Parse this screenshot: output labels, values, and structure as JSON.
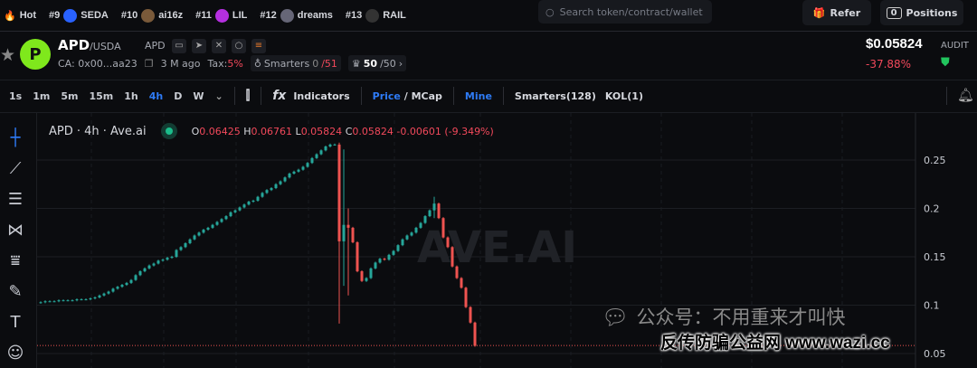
{
  "topbar": {
    "hot_label": "Hot",
    "trending": [
      {
        "rank": "#9",
        "name": "SEDA",
        "color": "#2962ff"
      },
      {
        "rank": "#10",
        "name": "ai16z",
        "color": "#7a5a3a"
      },
      {
        "rank": "#11",
        "name": "LIL",
        "color": "#b52fe0"
      },
      {
        "rank": "#12",
        "name": "dreams",
        "color": "#666677"
      },
      {
        "rank": "#13",
        "name": "RAIL",
        "color": "#333333"
      }
    ],
    "search_placeholder": "Search token/contract/wallet",
    "refer_label": "Refer",
    "positions_count": "0",
    "positions_label": "Positions"
  },
  "token": {
    "symbol": "APD",
    "pair": "/USDA",
    "chain_tag": "APD",
    "ca": "CA: 0x00...aa23",
    "age": "3 M ago",
    "tax_label": "Tax:",
    "tax_value": "5%",
    "smarters_label": "Smarters",
    "smarters_value": "0",
    "smarters_total": "/51",
    "holders_value": "50",
    "holders_total": "/50",
    "price": "$0.05824",
    "change": "-37.88%",
    "audit_label": "AUDIT"
  },
  "toolbar": {
    "timeframes": [
      "1s",
      "1m",
      "5m",
      "15m",
      "1h",
      "4h",
      "D",
      "W"
    ],
    "active_timeframe": "4h",
    "indicators_label": "Indicators",
    "price_label": "Price",
    "mcap_label": " / MCap",
    "mine_label": "Mine",
    "smarters_label": "Smarters(128)",
    "kol_label": "KOL(1)"
  },
  "chart_data": {
    "type": "candlestick",
    "title": "APD · 4h · Ave.ai",
    "ohlc_readout": {
      "o": "0.06425",
      "h": "0.06761",
      "l": "0.05824",
      "c": "0.05824",
      "change": "-0.00601 (-9.349%)"
    },
    "y_ticks": [
      "0.25",
      "0.2",
      "0.15",
      "0.1",
      "0.05"
    ],
    "ylim": [
      0.05,
      0.25
    ],
    "last_price": 0.05824,
    "closes": [
      0.103,
      0.104,
      0.104,
      0.104,
      0.105,
      0.105,
      0.105,
      0.105,
      0.106,
      0.106,
      0.106,
      0.107,
      0.108,
      0.11,
      0.112,
      0.114,
      0.117,
      0.119,
      0.121,
      0.123,
      0.126,
      0.131,
      0.135,
      0.138,
      0.141,
      0.143,
      0.146,
      0.147,
      0.149,
      0.15,
      0.157,
      0.16,
      0.164,
      0.168,
      0.172,
      0.175,
      0.178,
      0.18,
      0.183,
      0.186,
      0.189,
      0.192,
      0.196,
      0.198,
      0.201,
      0.204,
      0.207,
      0.208,
      0.212,
      0.216,
      0.219,
      0.221,
      0.225,
      0.228,
      0.232,
      0.236,
      0.238,
      0.24,
      0.243,
      0.247,
      0.252,
      0.256,
      0.26,
      0.264,
      0.266,
      0.266,
      0.166,
      0.183,
      0.18,
      0.165,
      0.135,
      0.125,
      0.128,
      0.138,
      0.144,
      0.148,
      0.147,
      0.152,
      0.156,
      0.162,
      0.168,
      0.172,
      0.175,
      0.18,
      0.185,
      0.192,
      0.198,
      0.205,
      0.19,
      0.17,
      0.16,
      0.14,
      0.128,
      0.118,
      0.098,
      0.082,
      0.058
    ],
    "wicks": {
      "66": [
        0.268,
        0.081
      ],
      "67": [
        0.261,
        0.12
      ],
      "68": [
        0.2,
        0.11
      ],
      "87": [
        0.212,
        0.19
      ]
    },
    "up_color": "#26a69a",
    "down_color": "#ef5350",
    "watermark": "AVE.AI"
  },
  "watermarks": {
    "wechat": "公众号：不用重来才叫快",
    "site": "反传防骗公益网 www.wazi.cc"
  }
}
